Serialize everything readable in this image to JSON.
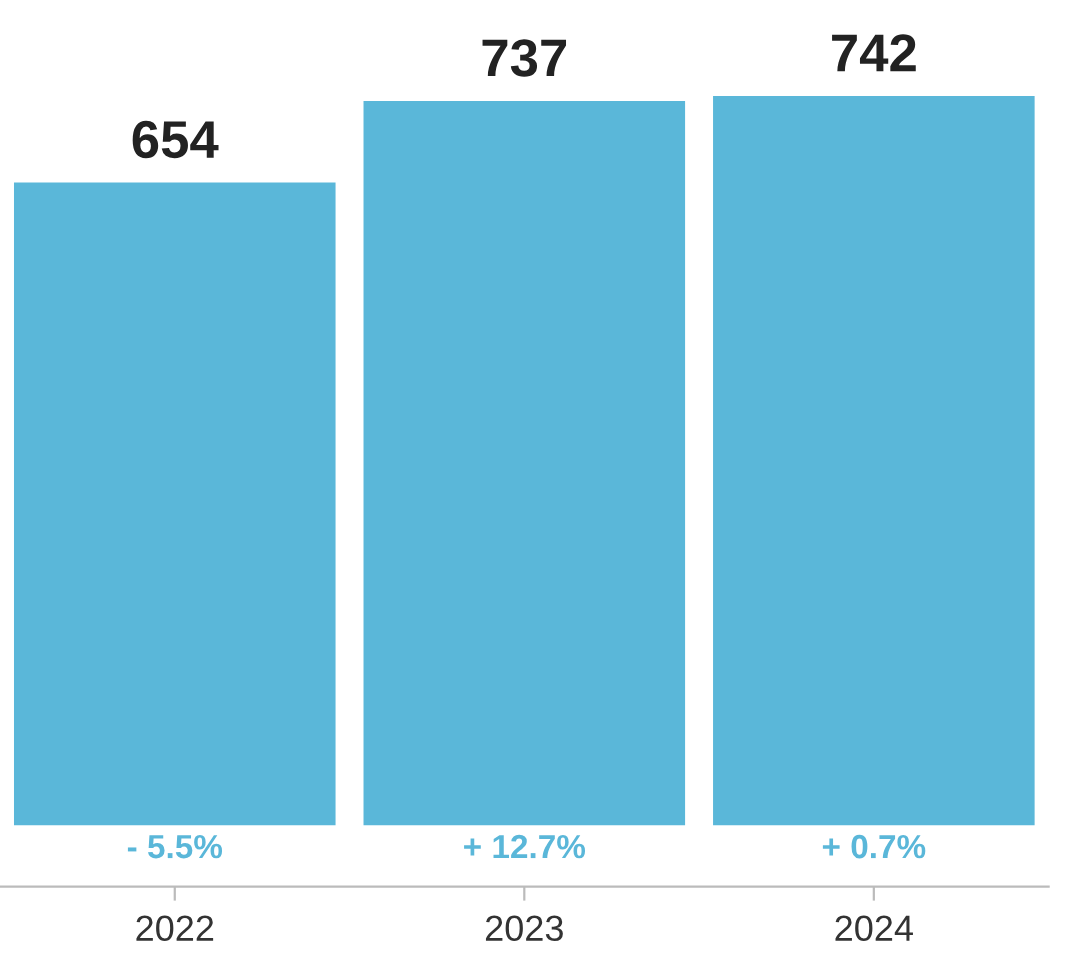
{
  "chart_data": {
    "type": "bar",
    "categories": [
      "2022",
      "2023",
      "2024"
    ],
    "values": [
      654,
      737,
      742
    ],
    "color": "#5ab7d9",
    "data_labels": true,
    "grid": false,
    "legend": false,
    "annotations": [
      "- 5.5%",
      "+ 12.7%",
      "+ 0.7%"
    ]
  }
}
